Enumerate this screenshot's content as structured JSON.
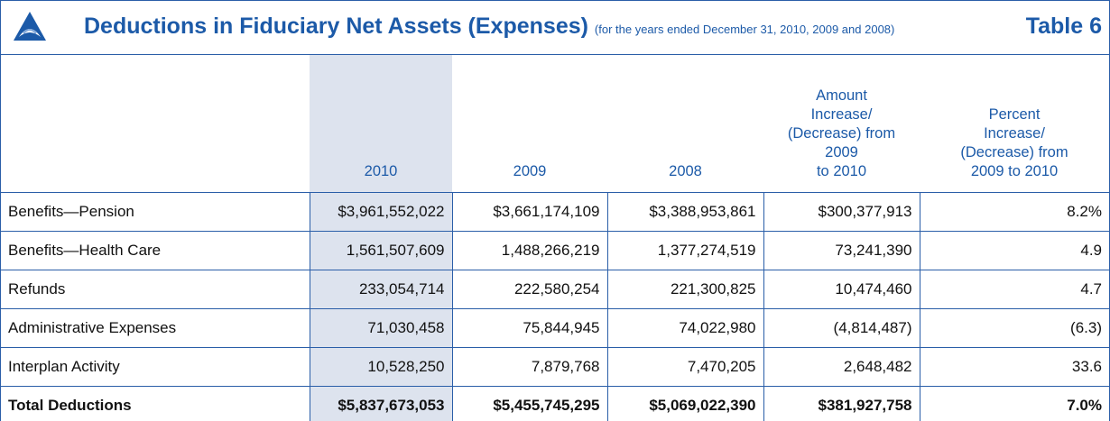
{
  "header": {
    "title": "Deductions in Fiduciary Net Assets (Expenses)",
    "subtitle": "(for the years ended December 31, 2010, 2009 and 2008)",
    "table_label": "Table 6"
  },
  "table": {
    "columns": [
      [],
      [
        "2010"
      ],
      [
        "2009"
      ],
      [
        "2008"
      ],
      [
        "Amount",
        "Increase/",
        "(Decrease) from",
        "2009",
        "to 2010"
      ],
      [
        "Percent",
        "Increase/",
        "(Decrease) from",
        "2009 to 2010"
      ]
    ],
    "rows": [
      [
        "Benefits—Pension",
        "$3,961,552,022",
        "$3,661,174,109",
        "$3,388,953,861",
        "$300,377,913",
        "8.2%"
      ],
      [
        "Benefits—Health Care",
        "1,561,507,609",
        "1,488,266,219",
        "1,377,274,519",
        "73,241,390",
        "4.9"
      ],
      [
        "Refunds",
        "233,054,714",
        "222,580,254",
        "221,300,825",
        "10,474,460",
        "4.7"
      ],
      [
        "Administrative Expenses",
        "71,030,458",
        "75,844,945",
        "74,022,980",
        "(4,814,487)",
        "(6.3)"
      ],
      [
        "Interplan Activity",
        "10,528,250",
        "7,879,768",
        "7,470,205",
        "2,648,482",
        "33.6"
      ],
      [
        "Total Deductions",
        "$5,837,673,053",
        "$5,455,745,295",
        "$5,069,022,390",
        "$381,927,758",
        "7.0%"
      ]
    ]
  }
}
